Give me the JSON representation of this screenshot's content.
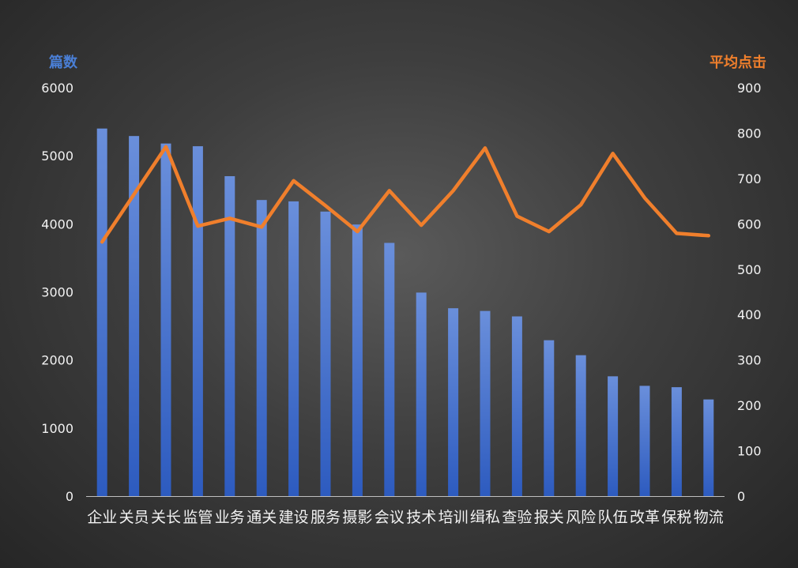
{
  "colors": {
    "bar_top": "#6a8fdb",
    "bar_bottom": "#2d5bbf",
    "line": "#f07f2c",
    "left_axis_title": "#4a7fd6",
    "right_axis_title": "#f07f2c",
    "tick_text": "#f2f2f2",
    "axis_line": "#bfbfbf"
  },
  "chart_data": {
    "type": "bar",
    "categories": [
      "企业",
      "关员",
      "关长",
      "监管",
      "业务",
      "通关",
      "建设",
      "服务",
      "摄影",
      "会议",
      "技术",
      "培训",
      "缉私",
      "查验",
      "报关",
      "风险",
      "队伍",
      "改革",
      "保税",
      "物流"
    ],
    "series": [
      {
        "name": "篇数",
        "type": "bar",
        "axis": "left",
        "values": [
          5400,
          5290,
          5180,
          5140,
          4700,
          4350,
          4330,
          4180,
          3990,
          3720,
          2990,
          2760,
          2720,
          2640,
          2290,
          2070,
          1760,
          1620,
          1600,
          1420
        ]
      },
      {
        "name": "平均点击",
        "type": "line",
        "axis": "right",
        "values": [
          560,
          665,
          770,
          595,
          612,
          593,
          695,
          640,
          583,
          673,
          597,
          673,
          767,
          617,
          583,
          642,
          755,
          657,
          579,
          574
        ]
      }
    ],
    "y_left": {
      "label": "篇数",
      "ylim": [
        0,
        6000
      ],
      "ticks": [
        0,
        1000,
        2000,
        3000,
        4000,
        5000,
        6000
      ]
    },
    "y_right": {
      "label": "平均点击",
      "ylim": [
        0,
        900
      ],
      "ticks": [
        0,
        100,
        200,
        300,
        400,
        500,
        600,
        700,
        800,
        900
      ]
    },
    "grid": false,
    "legend": "none"
  }
}
